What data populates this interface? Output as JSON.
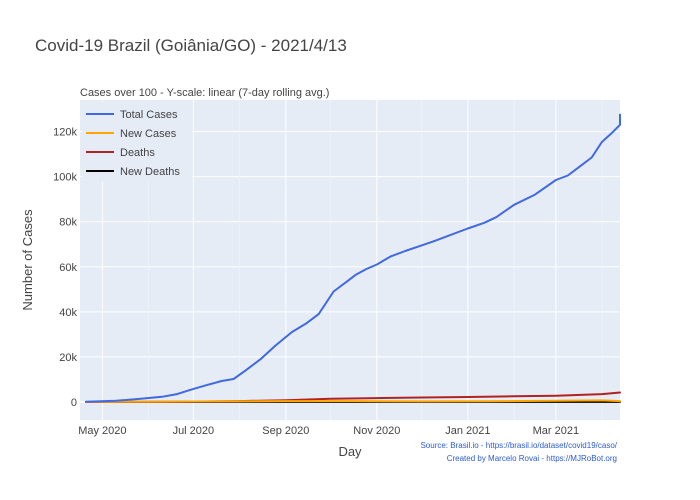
{
  "chart_data": {
    "type": "line",
    "title": "Covid-19 Brazil (Goiânia/GO) - 2021/4/13",
    "subtitle": "Cases over 100 - Y-scale: linear (7-day rolling avg.)",
    "xlabel": "Day",
    "ylabel": "Number of Cases",
    "x_ticks": [
      "May 2020",
      "Jul 2020",
      "Sep 2020",
      "Nov 2020",
      "Jan 2021",
      "Mar 2021"
    ],
    "y_ticks": [
      "0",
      "20k",
      "40k",
      "60k",
      "80k",
      "100k",
      "120k"
    ],
    "y_tick_values": [
      0,
      20000,
      40000,
      60000,
      80000,
      100000,
      120000
    ],
    "xlim": [
      "2020-04-16",
      "2021-04-13"
    ],
    "ylim": [
      -8000,
      134000
    ],
    "grid": true,
    "legend_position": "top-left",
    "series": [
      {
        "name": "Total Cases",
        "color": "#4169e1",
        "points": [
          [
            "2020-04-20",
            100
          ],
          [
            "2020-05-10",
            500
          ],
          [
            "2020-05-25",
            1300
          ],
          [
            "2020-06-10",
            2300
          ],
          [
            "2020-06-20",
            3500
          ],
          [
            "2020-07-01",
            5800
          ],
          [
            "2020-07-10",
            7500
          ],
          [
            "2020-07-20",
            9300
          ],
          [
            "2020-07-28",
            10200
          ],
          [
            "2020-08-05",
            14000
          ],
          [
            "2020-08-15",
            19000
          ],
          [
            "2020-08-25",
            25000
          ],
          [
            "2020-09-05",
            31000
          ],
          [
            "2020-09-15",
            35000
          ],
          [
            "2020-09-23",
            39000
          ],
          [
            "2020-10-03",
            49000
          ],
          [
            "2020-10-13",
            54000
          ],
          [
            "2020-10-18",
            56500
          ],
          [
            "2020-10-25",
            59000
          ],
          [
            "2020-11-01",
            61000
          ],
          [
            "2020-11-10",
            64500
          ],
          [
            "2020-11-20",
            67000
          ],
          [
            "2020-12-01",
            69500
          ],
          [
            "2020-12-10",
            71500
          ],
          [
            "2020-12-20",
            74000
          ],
          [
            "2021-01-01",
            77000
          ],
          [
            "2021-01-12",
            79500
          ],
          [
            "2021-01-20",
            82000
          ],
          [
            "2021-02-01",
            87500
          ],
          [
            "2021-02-15",
            92000
          ],
          [
            "2021-03-01",
            98500
          ],
          [
            "2021-03-09",
            100500
          ],
          [
            "2021-03-18",
            105000
          ],
          [
            "2021-03-25",
            108500
          ],
          [
            "2021-04-01",
            115500
          ],
          [
            "2021-04-07",
            119000
          ],
          [
            "2021-04-13",
            123000
          ],
          [
            "2021-04-20",
            125000
          ],
          [
            "2021-04-27",
            127500
          ]
        ]
      },
      {
        "name": "New Cases",
        "color": "#ffa500",
        "points": [
          [
            "2020-04-20",
            10
          ],
          [
            "2020-06-01",
            100
          ],
          [
            "2020-07-15",
            250
          ],
          [
            "2020-09-01",
            400
          ],
          [
            "2020-10-15",
            400
          ],
          [
            "2020-12-01",
            250
          ],
          [
            "2021-01-15",
            350
          ],
          [
            "2021-03-01",
            500
          ],
          [
            "2021-04-01",
            700
          ],
          [
            "2021-04-27",
            400
          ]
        ]
      },
      {
        "name": "Deaths",
        "color": "#b22222",
        "points": [
          [
            "2020-04-20",
            0
          ],
          [
            "2020-07-01",
            150
          ],
          [
            "2020-08-01",
            400
          ],
          [
            "2020-09-01",
            800
          ],
          [
            "2020-10-01",
            1400
          ],
          [
            "2020-11-01",
            1700
          ],
          [
            "2020-12-01",
            2000
          ],
          [
            "2021-01-01",
            2200
          ],
          [
            "2021-02-01",
            2500
          ],
          [
            "2021-03-01",
            2800
          ],
          [
            "2021-04-01",
            3500
          ],
          [
            "2021-04-27",
            4200
          ]
        ]
      },
      {
        "name": "New Deaths",
        "color": "#000000",
        "points": [
          [
            "2020-04-20",
            0
          ],
          [
            "2020-08-01",
            10
          ],
          [
            "2020-12-01",
            10
          ],
          [
            "2021-04-27",
            30
          ]
        ]
      }
    ],
    "source_text": [
      "Source: Brasil.io - https://brasil.io/dataset/covid19/caso/",
      "Created by Marcelo Rovai - https://MJRoBot.org"
    ]
  }
}
